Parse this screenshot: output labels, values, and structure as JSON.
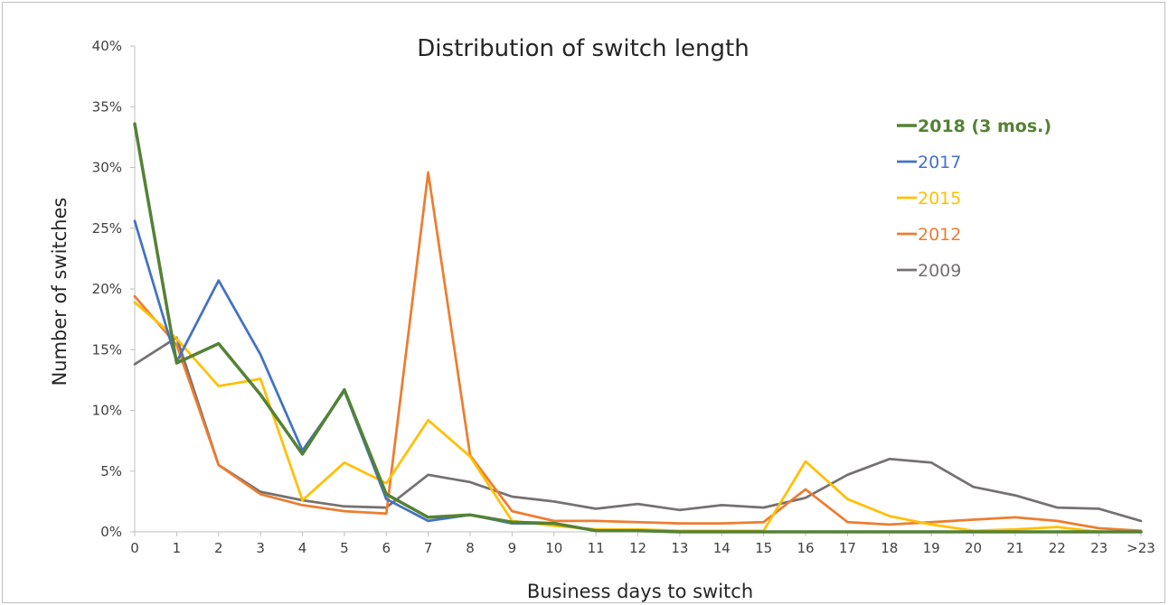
{
  "chart_data": {
    "type": "line",
    "title": "Distribution of switch length",
    "xlabel": "Business days to switch",
    "ylabel": "Number of switches",
    "categories": [
      "0",
      "1",
      "2",
      "3",
      "4",
      "5",
      "6",
      "7",
      "8",
      "9",
      "10",
      "11",
      "12",
      "13",
      "14",
      "15",
      "16",
      "17",
      "18",
      "19",
      "20",
      "21",
      "22",
      "23",
      ">23"
    ],
    "ylim": [
      0,
      40
    ],
    "yticks": [
      "0%",
      "5%",
      "10%",
      "15%",
      "20%",
      "25%",
      "30%",
      "35%",
      "40%"
    ],
    "ytick_values": [
      0,
      5,
      10,
      15,
      20,
      25,
      30,
      35,
      40
    ],
    "grid": false,
    "legend_position": "right",
    "series": [
      {
        "name": "2018 (3 mos.)",
        "color": "#548235",
        "bold": true,
        "values": [
          33.6,
          13.9,
          15.5,
          11.3,
          6.4,
          11.7,
          3.1,
          1.2,
          1.4,
          0.8,
          0.7,
          0.1,
          0.1,
          0.0,
          0.0,
          0.0,
          0.0,
          0.0,
          0.0,
          0.0,
          0.0,
          0.0,
          0.0,
          0.0,
          0.0
        ]
      },
      {
        "name": "2017",
        "color": "#4472C4",
        "bold": false,
        "values": [
          25.6,
          14.0,
          20.7,
          14.6,
          6.7,
          11.6,
          2.7,
          0.9,
          1.4,
          0.7,
          0.7,
          0.1,
          0.1,
          0.0,
          0.0,
          0.0,
          0.0,
          0.0,
          0.0,
          0.0,
          0.0,
          0.0,
          0.0,
          0.0,
          0.0
        ]
      },
      {
        "name": "2015",
        "color": "#FFC000",
        "bold": false,
        "values": [
          18.9,
          15.9,
          12.0,
          12.6,
          2.6,
          5.7,
          4.0,
          9.2,
          6.2,
          0.9,
          0.5,
          0.2,
          0.2,
          0.1,
          0.1,
          0.1,
          5.8,
          2.7,
          1.3,
          0.6,
          0.1,
          0.2,
          0.4,
          0.0,
          0.0
        ]
      },
      {
        "name": "2012",
        "color": "#ED7D31",
        "bold": false,
        "values": [
          19.4,
          15.4,
          5.5,
          3.1,
          2.2,
          1.7,
          1.5,
          29.6,
          6.3,
          1.7,
          0.9,
          0.9,
          0.8,
          0.7,
          0.7,
          0.8,
          3.5,
          0.8,
          0.6,
          0.8,
          1.0,
          1.2,
          0.9,
          0.3,
          0.1
        ]
      },
      {
        "name": "2009",
        "color": "#767171",
        "bold": false,
        "values": [
          13.8,
          16.0,
          5.5,
          3.3,
          2.6,
          2.1,
          2.0,
          4.7,
          4.1,
          2.9,
          2.5,
          1.9,
          2.3,
          1.8,
          2.2,
          2.0,
          2.8,
          4.7,
          6.0,
          5.7,
          3.7,
          3.0,
          2.0,
          1.9,
          0.9
        ]
      }
    ]
  }
}
